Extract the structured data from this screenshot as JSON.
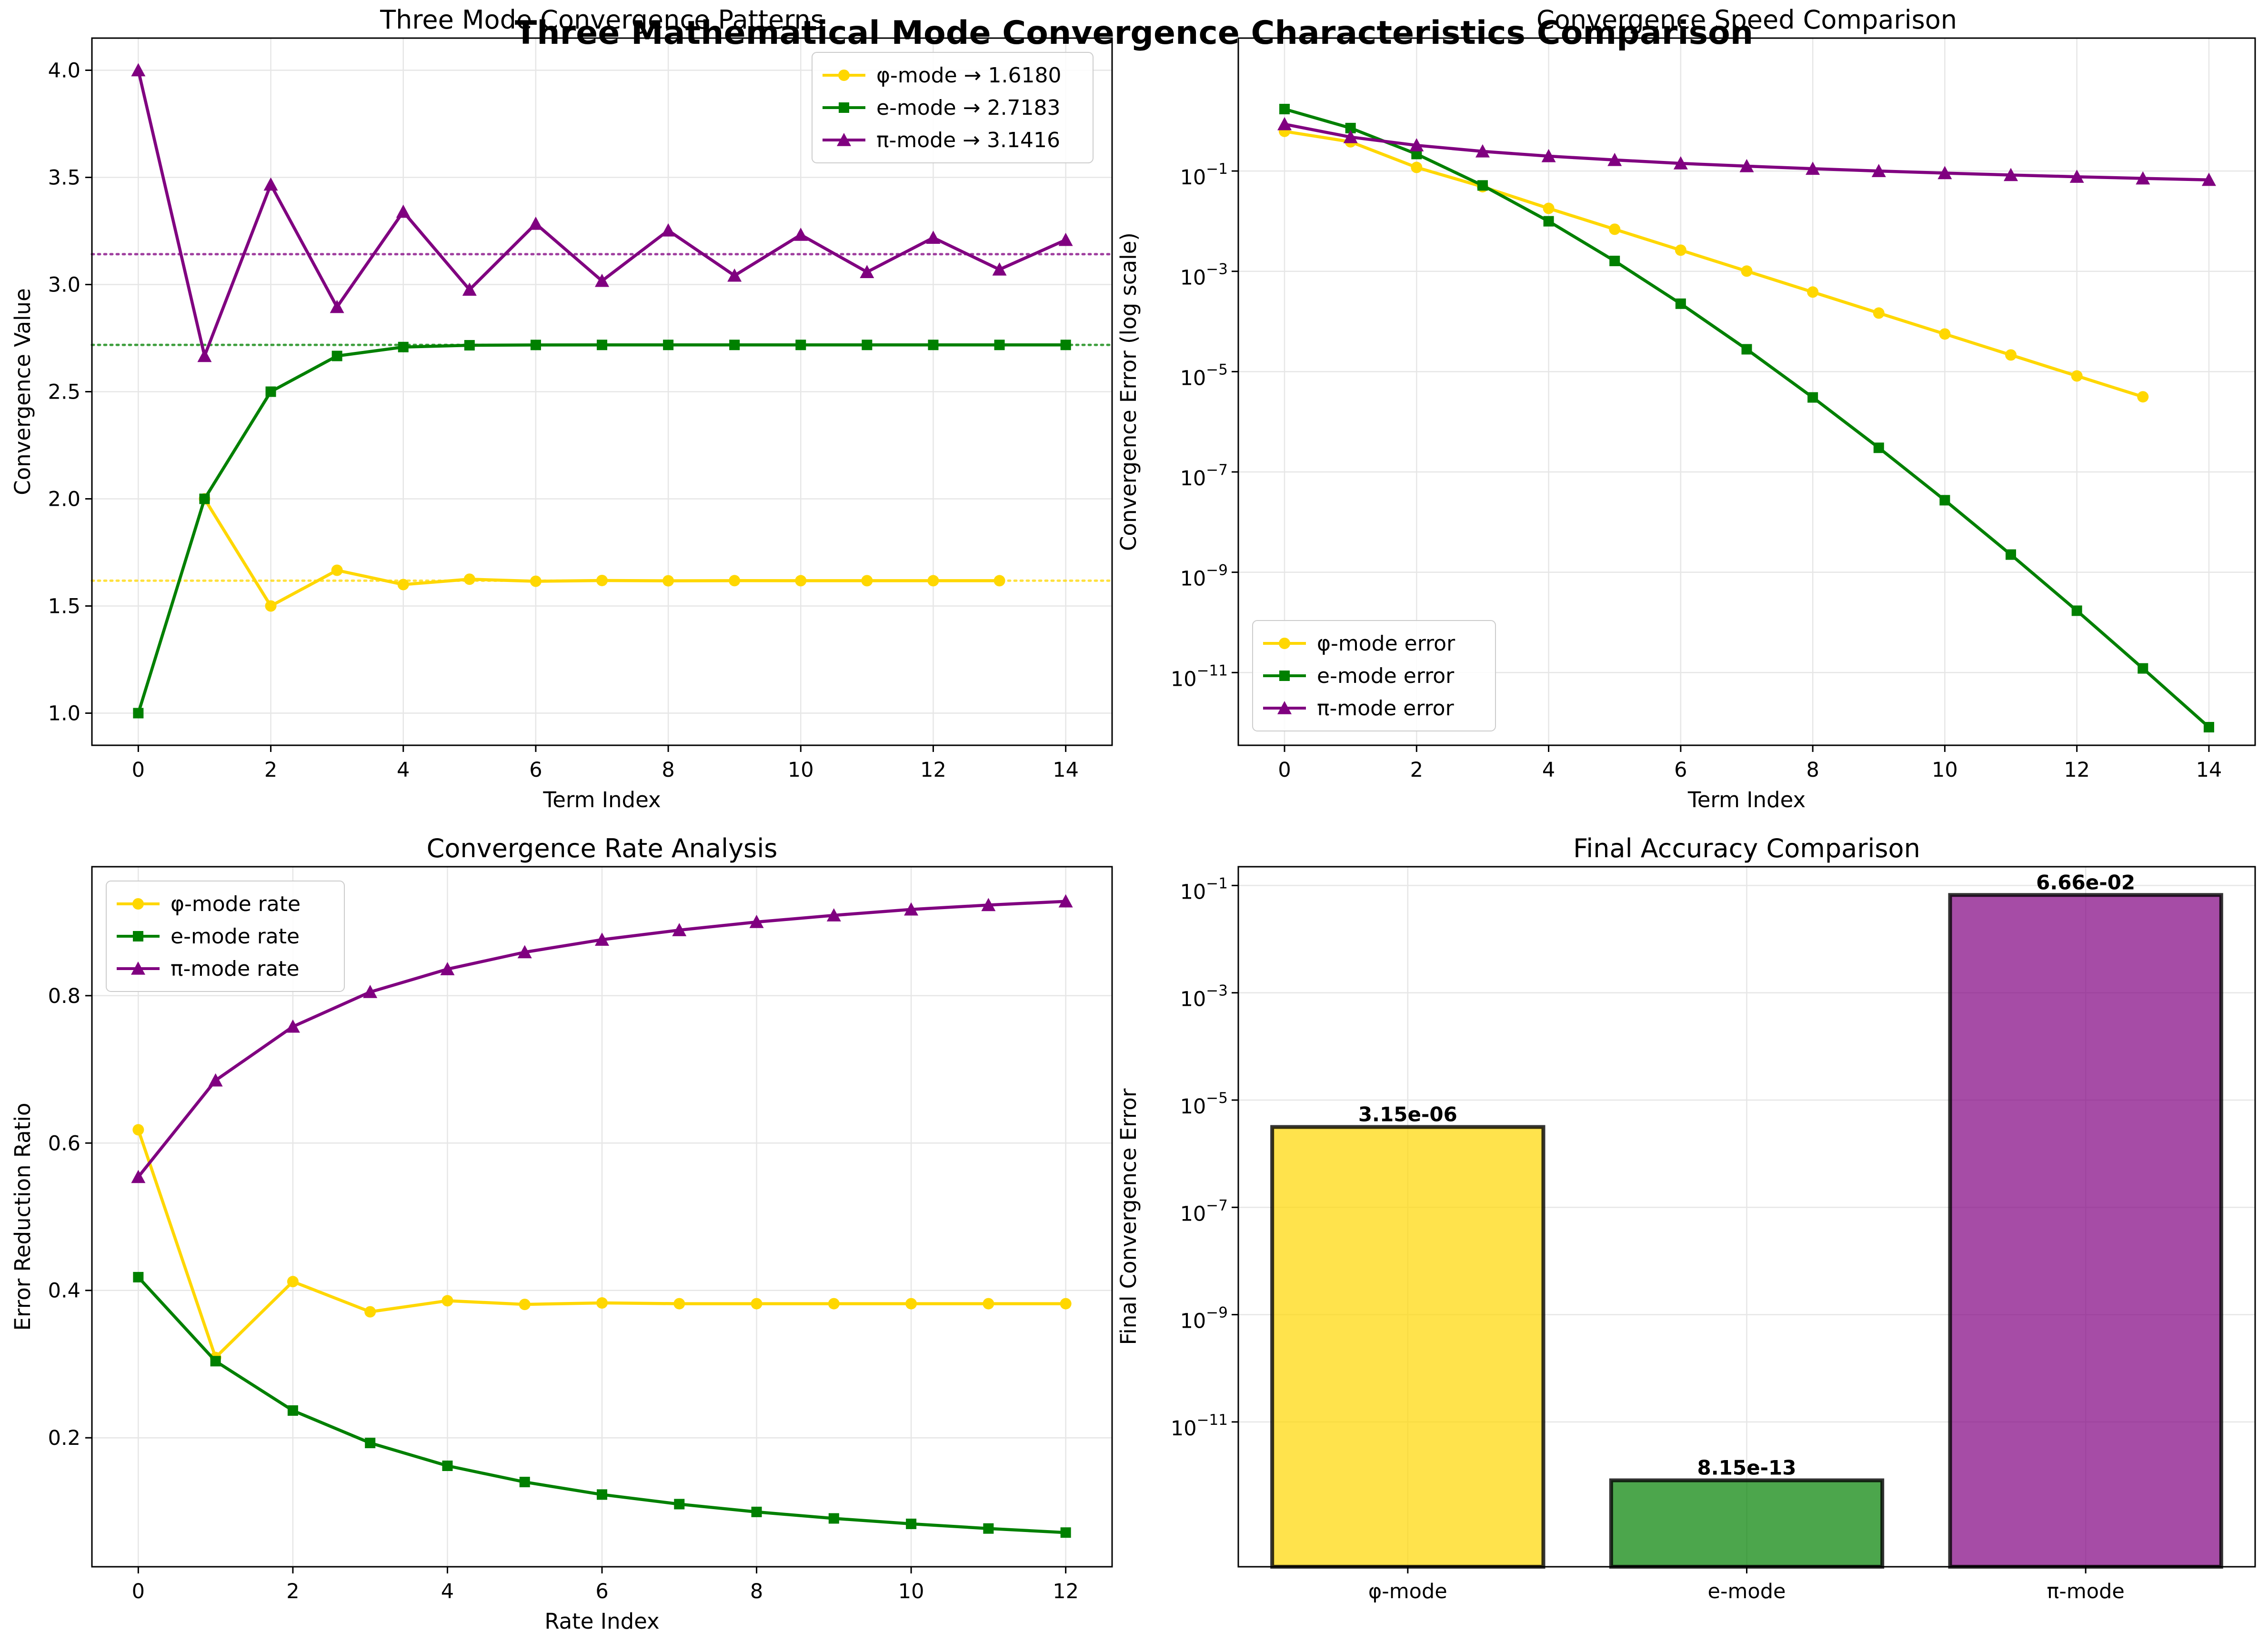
{
  "title": "Three Mathematical Mode Convergence Characteristics Comparison",
  "colors": {
    "phi": "#FFD700",
    "e": "#008000",
    "pi": "#800080",
    "grid": "#e6e6e6"
  },
  "chart_data": [
    {
      "type": "line",
      "title": "Three Mode Convergence Patterns",
      "xlabel": "Term Index",
      "ylabel": "Convergence Value",
      "xlim": [
        -0.7,
        14.7
      ],
      "ylim": [
        0.85,
        4.15
      ],
      "xticks": [
        0,
        2,
        4,
        6,
        8,
        10,
        12,
        14
      ],
      "xtick_labels": [
        "0",
        "2",
        "4",
        "6",
        "8",
        "10",
        "12",
        "14"
      ],
      "yticks": [
        1.0,
        1.5,
        2.0,
        2.5,
        3.0,
        3.5,
        4.0
      ],
      "ytick_labels": [
        "1.0",
        "1.5",
        "2.0",
        "2.5",
        "3.0",
        "3.5",
        "4.0"
      ],
      "legend_position": "upper right",
      "series": [
        {
          "name": "φ-mode → 1.6180",
          "color_key": "phi",
          "marker": "circle",
          "x": [
            1,
            2,
            3,
            4,
            5,
            6,
            7,
            8,
            9,
            10,
            11,
            12,
            13
          ],
          "values": [
            2.0,
            1.5,
            1.6667,
            1.6,
            1.625,
            1.6154,
            1.619,
            1.6176,
            1.6182,
            1.618,
            1.6181,
            1.618,
            1.618
          ]
        },
        {
          "name": "e-mode → 2.7183",
          "color_key": "e",
          "marker": "square",
          "x": [
            0,
            1,
            2,
            3,
            4,
            5,
            6,
            7,
            8,
            9,
            10,
            11,
            12,
            13,
            14
          ],
          "values": [
            1.0,
            2.0,
            2.5,
            2.6667,
            2.7083,
            2.7167,
            2.7181,
            2.7183,
            2.7183,
            2.7183,
            2.7183,
            2.7183,
            2.7183,
            2.7183,
            2.7183
          ]
        },
        {
          "name": "π-mode → 3.1416",
          "color_key": "pi",
          "marker": "triangle",
          "x": [
            0,
            1,
            2,
            3,
            4,
            5,
            6,
            7,
            8,
            9,
            10,
            11,
            12,
            13,
            14
          ],
          "values": [
            4.0,
            2.6667,
            3.4667,
            2.8952,
            3.3397,
            2.976,
            3.2837,
            3.0171,
            3.2524,
            3.0418,
            3.2323,
            3.0584,
            3.2184,
            3.0703,
            3.2082
          ]
        }
      ],
      "reference_lines": [
        {
          "value": 1.618,
          "color_key": "phi"
        },
        {
          "value": 2.7183,
          "color_key": "e"
        },
        {
          "value": 3.1416,
          "color_key": "pi"
        }
      ]
    },
    {
      "type": "line",
      "title": "Convergence Speed Comparison",
      "xlabel": "Term Index",
      "ylabel": "Convergence Error (log scale)",
      "yscale": "log",
      "xlim": [
        -0.7,
        14.7
      ],
      "ylim_log10": [
        -12.45,
        1.65
      ],
      "xticks": [
        0,
        2,
        4,
        6,
        8,
        10,
        12,
        14
      ],
      "xtick_labels": [
        "0",
        "2",
        "4",
        "6",
        "8",
        "10",
        "12",
        "14"
      ],
      "ytick_exponents": [
        -11,
        -9,
        -7,
        -5,
        -3,
        -1
      ],
      "ytick_labels": [
        "10",
        "10",
        "10",
        "10",
        "10",
        "10"
      ],
      "ytick_label_exponents": [
        "−11",
        "−9",
        "−7",
        "−5",
        "−3",
        "−1"
      ],
      "legend_position": "lower left",
      "series": [
        {
          "name": "φ-mode error",
          "color_key": "phi",
          "marker": "circle",
          "x": [
            0,
            1,
            2,
            3,
            4,
            5,
            6,
            7,
            8,
            9,
            10,
            11,
            12,
            13
          ],
          "values": [
            0.618,
            0.382,
            0.118,
            0.0486,
            0.018,
            0.0069,
            0.00264,
            0.00101,
            0.000386,
            0.000147,
            5.63e-05,
            2.15e-05,
            8.2e-06,
            3.15e-06
          ]
        },
        {
          "name": "e-mode error",
          "color_key": "e",
          "marker": "square",
          "x": [
            0,
            1,
            2,
            3,
            4,
            5,
            6,
            7,
            8,
            9,
            10,
            11,
            12,
            13,
            14
          ],
          "values": [
            1.718,
            0.718,
            0.218,
            0.0516,
            0.00995,
            0.00161,
            0.000226,
            2.79e-05,
            3.06e-06,
            3.03e-07,
            2.73e-08,
            2.25e-09,
            1.71e-10,
            1.21e-11,
            8.15e-13
          ]
        },
        {
          "name": "π-mode error",
          "color_key": "pi",
          "marker": "triangle",
          "x": [
            0,
            1,
            2,
            3,
            4,
            5,
            6,
            7,
            8,
            9,
            10,
            11,
            12,
            13,
            14
          ],
          "values": [
            0.858,
            0.475,
            0.325,
            0.246,
            0.198,
            0.166,
            0.142,
            0.125,
            0.111,
            0.1,
            0.0909,
            0.0832,
            0.0768,
            0.0713,
            0.0666
          ]
        }
      ]
    },
    {
      "type": "line",
      "title": "Convergence Rate Analysis",
      "xlabel": "Rate Index",
      "ylabel": "Error Reduction Ratio",
      "xlim": [
        -0.6,
        12.6
      ],
      "ylim": [
        0.025,
        0.975
      ],
      "xticks": [
        0,
        2,
        4,
        6,
        8,
        10,
        12
      ],
      "xtick_labels": [
        "0",
        "2",
        "4",
        "6",
        "8",
        "10",
        "12"
      ],
      "yticks": [
        0.2,
        0.4,
        0.6,
        0.8
      ],
      "ytick_labels": [
        "0.2",
        "0.4",
        "0.6",
        "0.8"
      ],
      "legend_position": "upper left",
      "series": [
        {
          "name": "φ-mode rate",
          "color_key": "phi",
          "marker": "circle",
          "x": [
            0,
            1,
            2,
            3,
            4,
            5,
            6,
            7,
            8,
            9,
            10,
            11,
            12
          ],
          "values": [
            0.618,
            0.309,
            0.412,
            0.371,
            0.386,
            0.381,
            0.383,
            0.382,
            0.382,
            0.382,
            0.382,
            0.382,
            0.382
          ]
        },
        {
          "name": "e-mode rate",
          "color_key": "e",
          "marker": "square",
          "x": [
            0,
            1,
            2,
            3,
            4,
            5,
            6,
            7,
            8,
            9,
            10,
            11,
            12
          ],
          "values": [
            0.418,
            0.304,
            0.237,
            0.193,
            0.162,
            0.14,
            0.123,
            0.11,
            0.0994,
            0.0906,
            0.0832,
            0.0769,
            0.0714
          ]
        },
        {
          "name": "π-mode rate",
          "color_key": "pi",
          "marker": "triangle",
          "x": [
            0,
            1,
            2,
            3,
            4,
            5,
            6,
            7,
            8,
            9,
            10,
            11,
            12
          ],
          "values": [
            0.554,
            0.685,
            0.758,
            0.805,
            0.836,
            0.859,
            0.876,
            0.889,
            0.9,
            0.909,
            0.917,
            0.923,
            0.928
          ]
        }
      ]
    },
    {
      "type": "bar",
      "title": "Final Accuracy Comparison",
      "xlabel": "",
      "ylabel": "Final Convergence Error",
      "yscale": "log",
      "ylim_log10": [
        -13.7,
        -0.65
      ],
      "categories": [
        "φ-mode",
        "e-mode",
        "π-mode"
      ],
      "values": [
        3.15e-06,
        8.15e-13,
        0.0666
      ],
      "value_labels": [
        "3.15e-06",
        "8.15e-13",
        "6.66e-02"
      ],
      "color_keys": [
        "phi",
        "e",
        "pi"
      ],
      "ytick_exponents": [
        -11,
        -9,
        -7,
        -5,
        -3,
        -1
      ],
      "ytick_labels": [
        "10",
        "10",
        "10",
        "10",
        "10",
        "10"
      ],
      "ytick_label_exponents": [
        "−11",
        "−9",
        "−7",
        "−5",
        "−3",
        "−1"
      ]
    }
  ]
}
